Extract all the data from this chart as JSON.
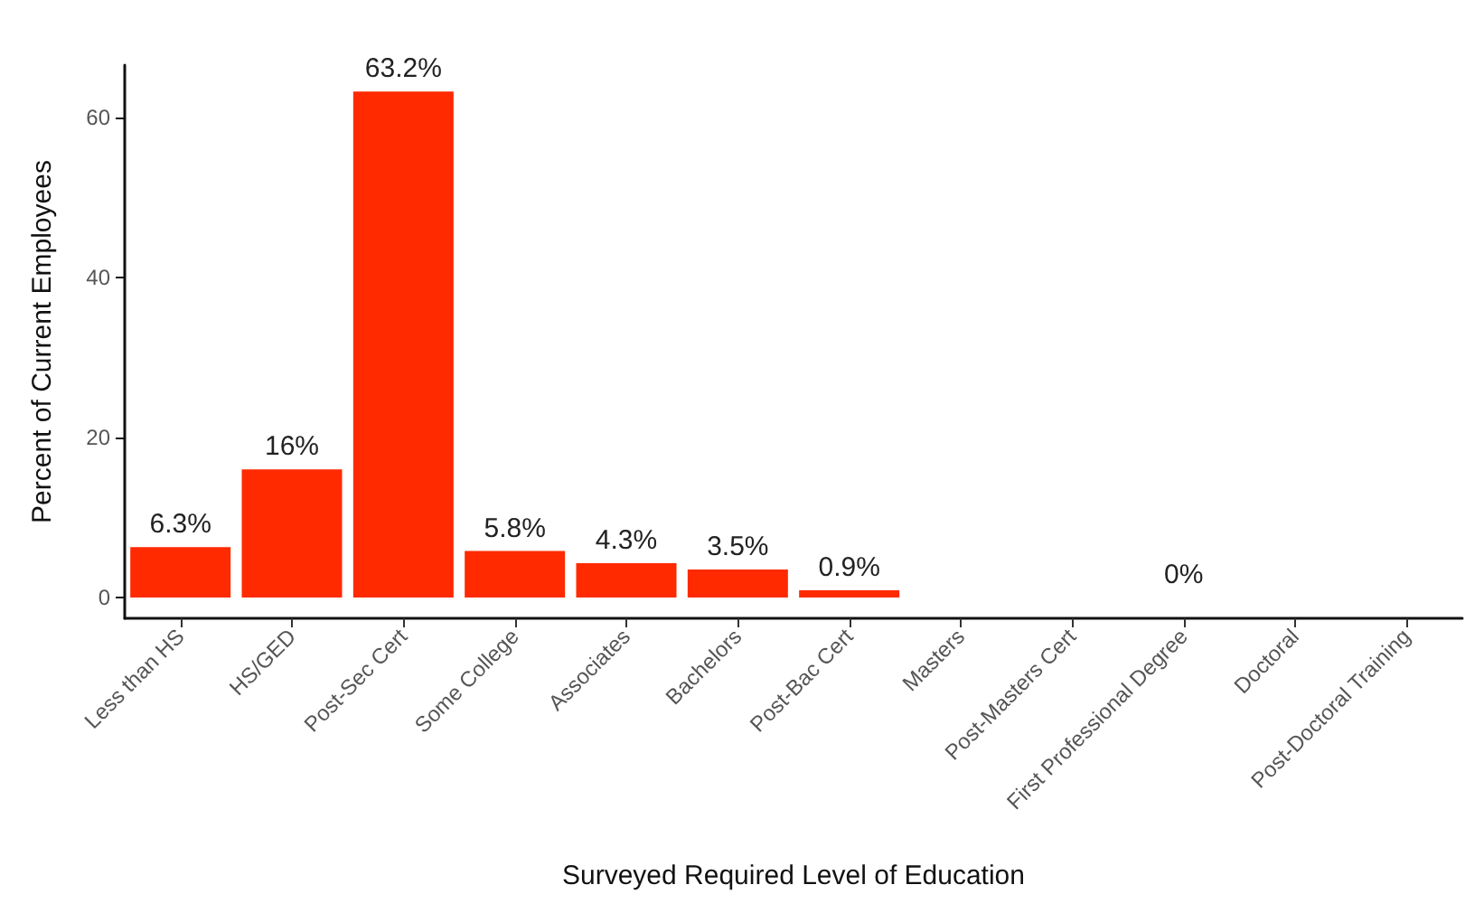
{
  "chart_data": {
    "type": "bar",
    "xlabel": "Surveyed Required Level of Education",
    "ylabel": "Percent of Current Employees",
    "categories": [
      "Less than HS",
      "HS/GED",
      "Post-Sec Cert",
      "Some College",
      "Associates",
      "Bachelors",
      "Post-Bac Cert",
      "Masters",
      "Post-Masters Cert",
      "First Professional Degree",
      "Doctoral",
      "Post-Doctoral Training"
    ],
    "values": [
      6.3,
      16,
      63.2,
      5.8,
      4.3,
      3.5,
      0.9,
      0,
      0,
      0,
      0,
      0
    ],
    "value_labels": [
      "6.3%",
      "16%",
      "63.2%",
      "5.8%",
      "4.3%",
      "3.5%",
      "0.9%",
      null,
      null,
      "0%",
      null,
      null
    ],
    "color": "#ff2a00",
    "ylim": [
      -2.6,
      66.5
    ],
    "yticks": [
      0,
      20,
      40,
      60
    ],
    "grid": false
  }
}
